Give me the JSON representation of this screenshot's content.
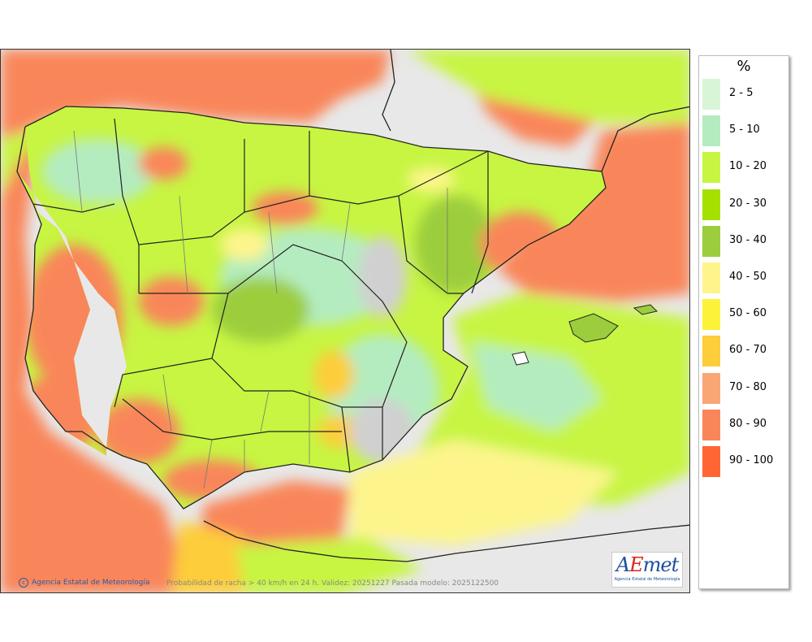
{
  "legend": {
    "unit": "%",
    "items": [
      {
        "label": "2 - 5",
        "color": "#d8f5d8"
      },
      {
        "label": "5 - 10",
        "color": "#b4ecc0"
      },
      {
        "label": "10 - 20",
        "color": "#c7f542"
      },
      {
        "label": "20 - 30",
        "color": "#a6e000"
      },
      {
        "label": "30 - 40",
        "color": "#9ccd3c"
      },
      {
        "label": "40 - 50",
        "color": "#fdf58c"
      },
      {
        "label": "50 - 60",
        "color": "#fdf23a"
      },
      {
        "label": "60 - 70",
        "color": "#fdcd3a"
      },
      {
        "label": "70 - 80",
        "color": "#f9a674"
      },
      {
        "label": "80 - 90",
        "color": "#f9865a"
      },
      {
        "label": "90 - 100",
        "color": "#ff6633"
      }
    ]
  },
  "footer": {
    "credit": "Agencia Estatal de Meteorología",
    "caption": "Probabilidad de racha > 40 km/h en 24 h. Validez: 20251227 Pasada modelo: 2025122500"
  },
  "logo": {
    "brand_a": "A",
    "brand_e": "E",
    "brand_rest": "met",
    "subtitle": "Agencia Estatal de Meteorología"
  },
  "map": {
    "sea_low_color": "#e8e8e8",
    "sea_high_color": "#f9865a",
    "land_base_color": "#c7f542",
    "border_color": "#222222"
  }
}
